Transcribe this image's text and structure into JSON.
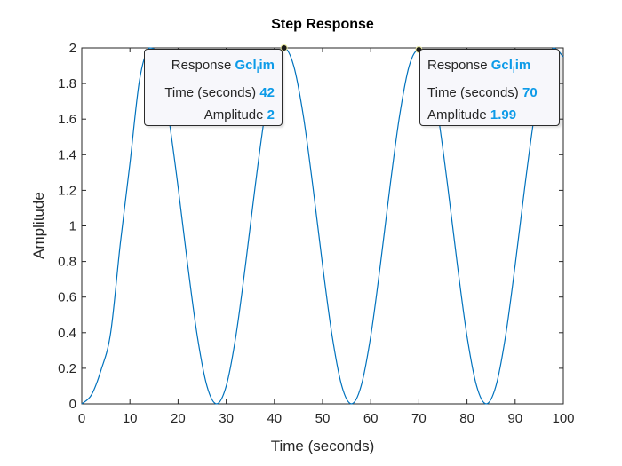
{
  "chart_data": {
    "type": "line",
    "title": "Step Response",
    "xlabel": "Time (seconds)",
    "ylabel": "Amplitude",
    "xlim": [
      0,
      100
    ],
    "ylim": [
      0,
      2
    ],
    "x_ticks": [
      "0",
      "10",
      "20",
      "30",
      "40",
      "50",
      "60",
      "70",
      "80",
      "90",
      "100"
    ],
    "y_ticks": [
      "0",
      "0.2",
      "0.4",
      "0.6",
      "0.8",
      "1",
      "1.2",
      "1.4",
      "1.6",
      "1.8",
      "2"
    ],
    "grid": false,
    "line_color": "#0072bd",
    "series": [
      {
        "x": [
          0,
          2,
          4,
          6,
          8,
          10,
          12,
          14,
          16,
          18,
          20,
          22,
          24,
          26,
          28,
          30,
          32,
          34,
          36,
          38,
          40,
          42,
          44,
          46,
          48,
          50,
          52,
          54,
          56,
          58,
          60,
          62,
          64,
          66,
          68,
          70,
          72,
          74,
          76,
          78,
          80,
          82,
          84,
          86,
          88,
          90,
          92,
          94,
          96,
          98,
          100
        ],
        "y": [
          0,
          0.05,
          0.19,
          0.4,
          0.9,
          1.35,
          1.82,
          2.0,
          1.95,
          1.62,
          1.22,
          0.78,
          0.38,
          0.1,
          0,
          0.1,
          0.38,
          0.78,
          1.22,
          1.62,
          1.9,
          2.0,
          1.9,
          1.62,
          1.22,
          0.78,
          0.38,
          0.1,
          0,
          0.1,
          0.38,
          0.78,
          1.22,
          1.62,
          1.9,
          1.99,
          1.9,
          1.62,
          1.22,
          0.78,
          0.38,
          0.1,
          0,
          0.1,
          0.38,
          0.78,
          1.22,
          1.62,
          1.9,
          2.0,
          1.95
        ]
      }
    ],
    "datatips": [
      {
        "response_label": "Response",
        "response_name": "Gcl",
        "response_sub": "l",
        "response_suffix": "im",
        "time_label": "Time (seconds)",
        "time_value": "42",
        "time_x": 42,
        "amp_label": "Amplitude",
        "amp_value": "2",
        "amp_y": 2
      },
      {
        "response_label": "Response",
        "response_name": "Gcl",
        "response_sub": "l",
        "response_suffix": "im",
        "time_label": "Time (seconds)",
        "time_value": "70",
        "time_x": 70,
        "amp_label": "Amplitude",
        "amp_value": "1.99",
        "amp_y": 1.99
      }
    ]
  }
}
